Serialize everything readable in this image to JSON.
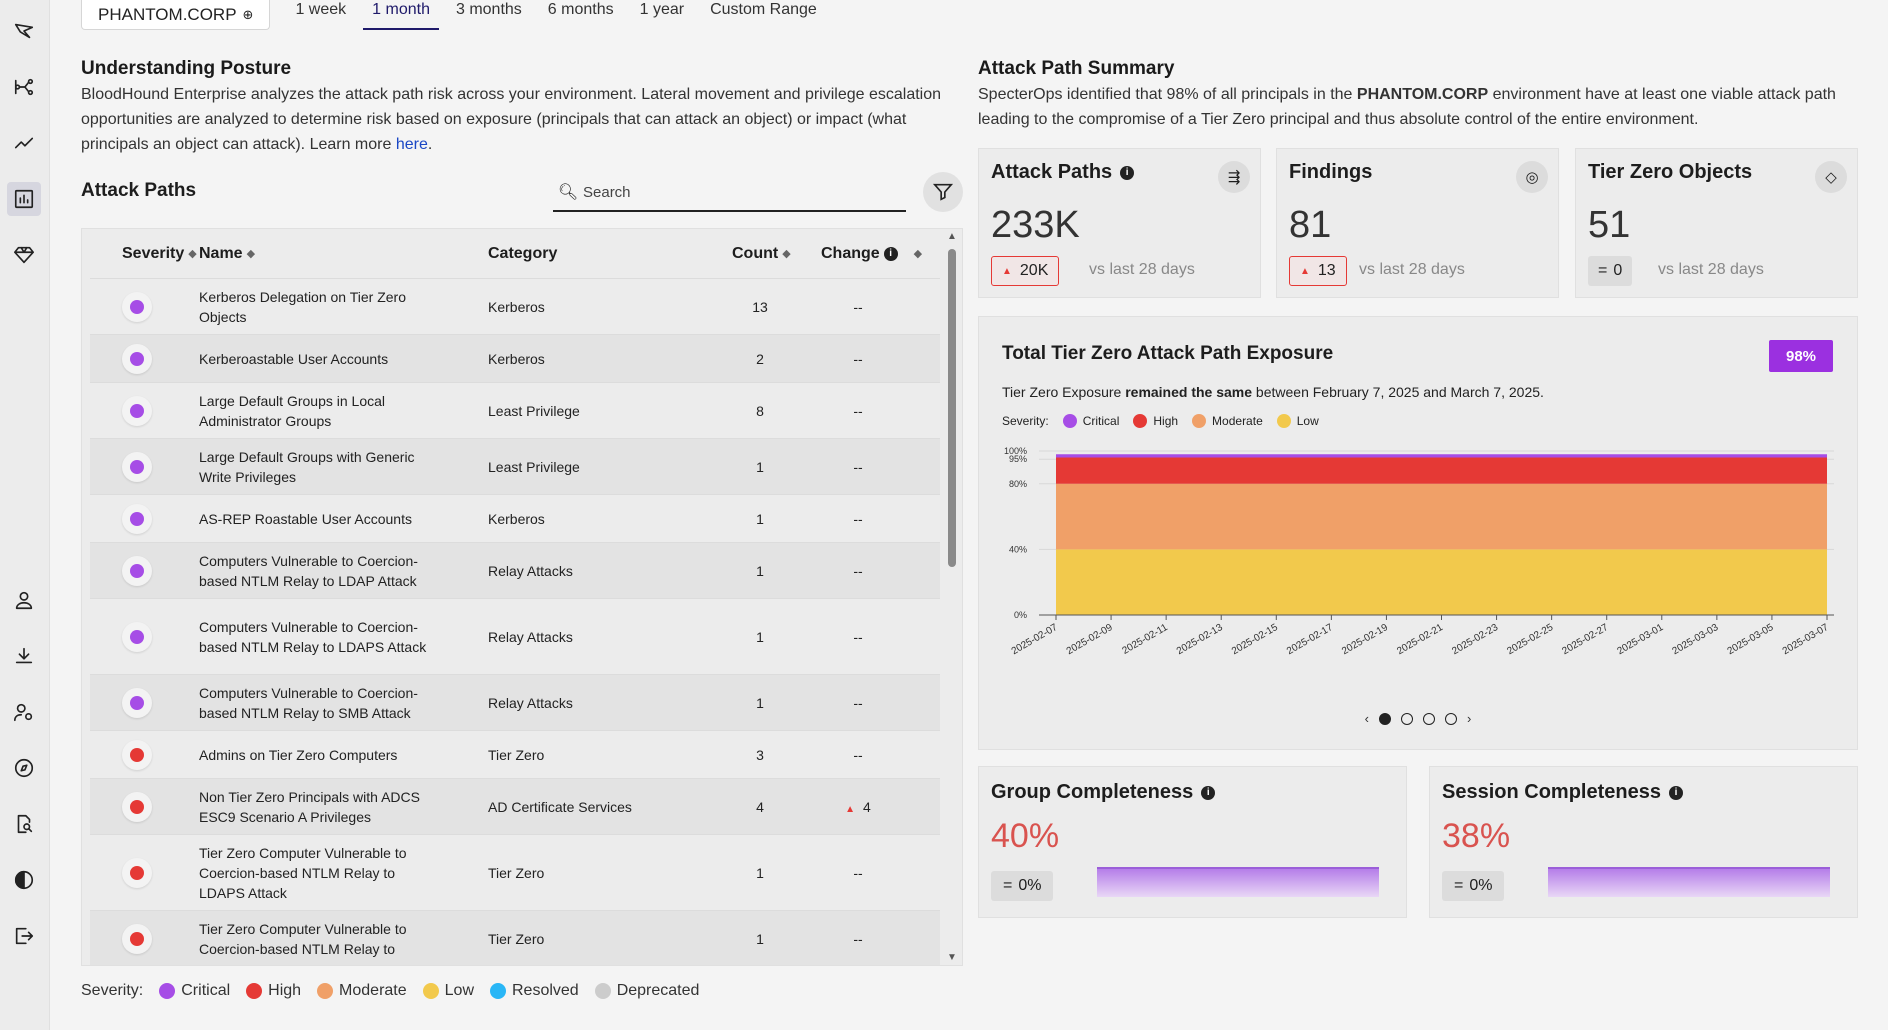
{
  "sidebar": {
    "icons": [
      "logo-icon",
      "attack-path-icon",
      "trend-icon",
      "posture-icon",
      "gem-icon",
      "user-icon",
      "download-icon",
      "user-settings-icon",
      "compass-icon",
      "search-doc-icon",
      "theme-icon",
      "logout-icon"
    ]
  },
  "topbar": {
    "domain": "PHANTOM.CORP",
    "ranges": [
      "1 week",
      "1 month",
      "3 months",
      "6 months",
      "1 year",
      "Custom Range"
    ],
    "active_range": "1 month"
  },
  "posture": {
    "title": "Understanding Posture",
    "text": "BloodHound Enterprise analyzes the attack path risk across your environment. Lateral movement and privilege escalation opportunities are analyzed to determine risk based on exposure (principals that can attack an object) or impact (what principals an object can attack). Learn more ",
    "link": "here",
    "tail": "."
  },
  "attack_paths": {
    "title": "Attack Paths",
    "search_placeholder": "Search",
    "columns": [
      "Severity",
      "Name",
      "Category",
      "Count",
      "Change"
    ],
    "rows": [
      {
        "severity": "critical",
        "name": "Kerberos Delegation on Tier Zero Objects",
        "category": "Kerberos",
        "count": "13",
        "change": "--",
        "up": false
      },
      {
        "severity": "critical",
        "name": "Kerberoastable User Accounts",
        "category": "Kerberos",
        "count": "2",
        "change": "--",
        "up": false
      },
      {
        "severity": "critical",
        "name": "Large Default Groups in Local Administrator Groups",
        "category": "Least Privilege",
        "count": "8",
        "change": "--",
        "up": false
      },
      {
        "severity": "critical",
        "name": "Large Default Groups with Generic Write Privileges",
        "category": "Least Privilege",
        "count": "1",
        "change": "--",
        "up": false
      },
      {
        "severity": "critical",
        "name": "AS-REP Roastable User Accounts",
        "category": "Kerberos",
        "count": "1",
        "change": "--",
        "up": false
      },
      {
        "severity": "critical",
        "name": "Computers Vulnerable to Coercion-based NTLM Relay to LDAP Attack",
        "category": "Relay Attacks",
        "count": "1",
        "change": "--",
        "up": false
      },
      {
        "severity": "critical",
        "name": "Computers Vulnerable to Coercion-based NTLM Relay to LDAPS Attack",
        "category": "Relay Attacks",
        "count": "1",
        "change": "--",
        "up": false
      },
      {
        "severity": "critical",
        "name": "Computers Vulnerable to Coercion-based NTLM Relay to SMB Attack",
        "category": "Relay Attacks",
        "count": "1",
        "change": "--",
        "up": false
      },
      {
        "severity": "high",
        "name": "Admins on Tier Zero Computers",
        "category": "Tier Zero",
        "count": "3",
        "change": "--",
        "up": false
      },
      {
        "severity": "high",
        "name": "Non Tier Zero Principals with ADCS ESC9 Scenario A Privileges",
        "category": "AD Certificate Services",
        "count": "4",
        "change": "4",
        "up": true
      },
      {
        "severity": "high",
        "name": "Tier Zero Computer Vulnerable to Coercion-based NTLM Relay to LDAPS Attack",
        "category": "Tier Zero",
        "count": "1",
        "change": "--",
        "up": false
      },
      {
        "severity": "high",
        "name": "Tier Zero Computer Vulnerable to Coercion-based NTLM Relay to",
        "category": "Tier Zero",
        "count": "1",
        "change": "--",
        "up": false
      }
    ]
  },
  "severity_legend": {
    "label": "Severity:",
    "items": [
      {
        "name": "Critical",
        "color": "#a64de6"
      },
      {
        "name": "High",
        "color": "#e53935"
      },
      {
        "name": "Moderate",
        "color": "#f0a068"
      },
      {
        "name": "Low",
        "color": "#f2c94c"
      },
      {
        "name": "Resolved",
        "color": "#29b6f6"
      },
      {
        "name": "Deprecated",
        "color": "#cccccc"
      }
    ]
  },
  "summary": {
    "title": "Attack Path Summary",
    "text_pre": "SpecterOps identified that 98% of all principals in the ",
    "text_bold": "PHANTOM.CORP",
    "text_post": " environment have at least one viable attack path leading to the compromise of a Tier Zero principal and thus absolute control of the entire environment."
  },
  "stats": [
    {
      "title": "Attack Paths",
      "value": "233K",
      "delta": "20K",
      "delta_type": "up",
      "vs": "vs last 28 days",
      "info": true,
      "icon": "attack-path-icon"
    },
    {
      "title": "Findings",
      "value": "81",
      "delta": "13",
      "delta_type": "up",
      "vs": "vs last 28 days",
      "info": false,
      "icon": "fingerprint-icon"
    },
    {
      "title": "Tier Zero Objects",
      "value": "51",
      "delta": "0",
      "delta_type": "eq",
      "vs": "vs last 28 days",
      "info": false,
      "icon": "gem-icon"
    }
  ],
  "exposure": {
    "title": "Total Tier Zero Attack Path Exposure",
    "badge": "98%",
    "desc_pre": "Tier Zero Exposure ",
    "desc_bold": "remained the same",
    "desc_post": " between February 7, 2025 and March 7, 2025.",
    "legend_label": "Severity:",
    "legend": [
      "Critical",
      "High",
      "Moderate",
      "Low"
    ],
    "pager_prev": "‹",
    "pager_next": "›"
  },
  "chart_data": {
    "type": "area",
    "x": [
      "2025-02-07",
      "2025-02-09",
      "2025-02-11",
      "2025-02-13",
      "2025-02-15",
      "2025-02-17",
      "2025-02-19",
      "2025-02-21",
      "2025-02-23",
      "2025-02-25",
      "2025-02-27",
      "2025-03-01",
      "2025-03-03",
      "2025-03-05",
      "2025-03-07"
    ],
    "stacked": true,
    "series": [
      {
        "name": "Low",
        "color": "#f2c94c",
        "values": [
          40,
          40,
          40,
          40,
          40,
          40,
          40,
          40,
          40,
          40,
          40,
          40,
          40,
          40,
          40
        ]
      },
      {
        "name": "Moderate",
        "color": "#f0a068",
        "values": [
          40,
          40,
          40,
          40,
          40,
          40,
          40,
          40,
          40,
          40,
          40,
          40,
          40,
          40,
          40
        ]
      },
      {
        "name": "High",
        "color": "#e53935",
        "values": [
          16,
          16,
          16,
          16,
          16,
          16,
          16,
          16,
          16,
          16,
          16,
          16,
          16,
          16,
          16
        ]
      },
      {
        "name": "Critical",
        "color": "#a64de6",
        "values": [
          2,
          2,
          2,
          2,
          2,
          2,
          2,
          2,
          2,
          2,
          2,
          2,
          2,
          2,
          2
        ]
      }
    ],
    "y_ticks": [
      "0%",
      "40%",
      "80%",
      "95%",
      "100%"
    ],
    "y_tick_values": [
      0,
      40,
      80,
      95,
      100
    ],
    "ylim": [
      0,
      100
    ],
    "grid": true
  },
  "completeness": [
    {
      "title": "Group Completeness",
      "value": "40%",
      "delta": "0%"
    },
    {
      "title": "Session Completeness",
      "value": "38%",
      "delta": "0%"
    }
  ]
}
